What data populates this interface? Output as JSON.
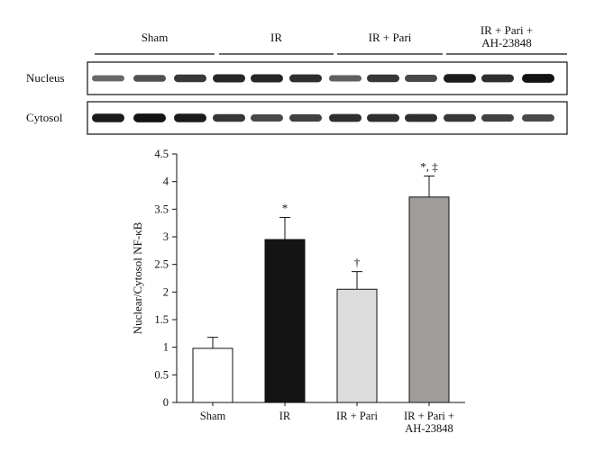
{
  "blot": {
    "groups": [
      "Sham",
      "IR",
      "IR + Pari",
      "IR + Pari +\nAH-23848"
    ],
    "rows": [
      {
        "label": "Nucleus",
        "intensity": [
          0.45,
          0.6,
          0.75,
          0.85,
          0.85,
          0.8,
          0.5,
          0.75,
          0.65,
          0.9,
          0.8,
          0.95
        ]
      },
      {
        "label": "Cytosol",
        "intensity": [
          0.9,
          0.95,
          0.9,
          0.75,
          0.65,
          0.7,
          0.8,
          0.8,
          0.8,
          0.75,
          0.7,
          0.65
        ]
      }
    ]
  },
  "chart_data": {
    "type": "bar",
    "ylabel": "Nuclear/Cytosol NF-κB",
    "ylim": [
      0,
      4.5
    ],
    "yticks": [
      "0",
      "0.5",
      "1",
      "1.5",
      "2",
      "2.5",
      "3",
      "3.5",
      "4",
      "4.5"
    ],
    "categories": [
      "Sham",
      "IR",
      "IR + Pari",
      "IR + Pari +\nAH-23848"
    ],
    "values": [
      0.98,
      2.95,
      2.05,
      3.72
    ],
    "errors": [
      0.2,
      0.4,
      0.32,
      0.38
    ],
    "annotations": [
      "",
      "*",
      "†",
      "*, ‡"
    ],
    "colors": [
      "#ffffff",
      "#141414",
      "#dcdcdc",
      "#a09c9a"
    ],
    "grid": false
  }
}
